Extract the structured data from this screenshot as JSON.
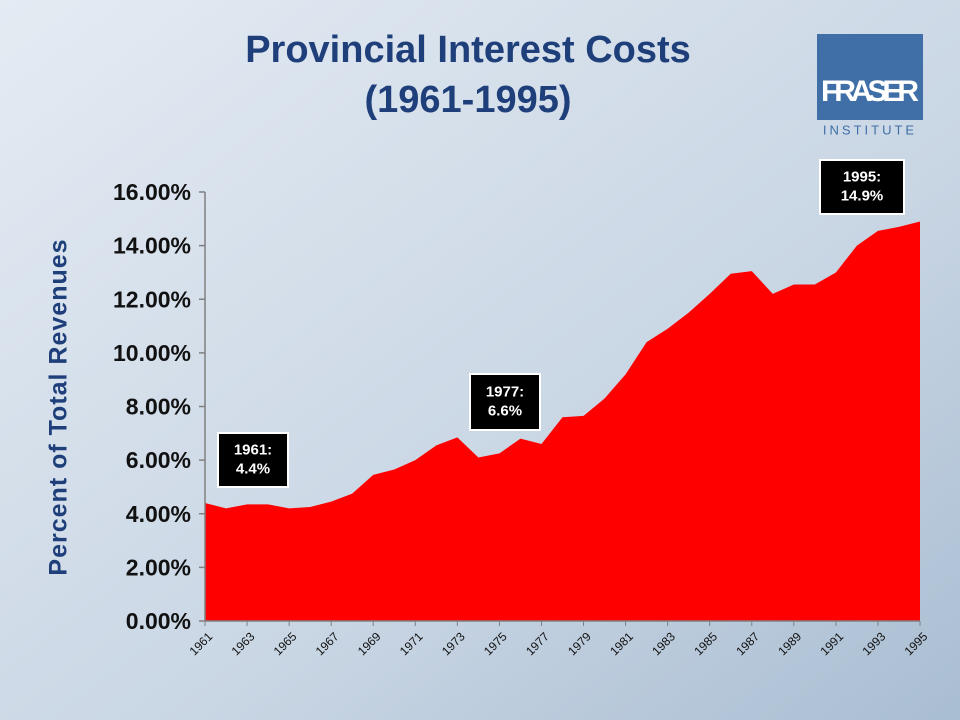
{
  "chart_data": {
    "type": "area",
    "title": "Provincial Interest Costs",
    "subtitle": "(1961-1995)",
    "y_label": "Percent of Total Revenues",
    "categories": [
      "1961",
      null,
      "1963",
      null,
      "1965",
      null,
      "1967",
      null,
      "1969",
      null,
      "1971",
      null,
      "1973",
      null,
      "1975",
      null,
      "1977",
      null,
      "1979",
      null,
      "1981",
      null,
      "1983",
      null,
      "1985",
      null,
      "1987",
      null,
      "1989",
      null,
      "1991",
      null,
      "1993",
      null,
      "1995"
    ],
    "values": [
      4.4,
      4.2,
      4.35,
      4.35,
      4.2,
      4.25,
      4.45,
      4.75,
      5.45,
      5.65,
      6.0,
      6.55,
      6.85,
      6.1,
      6.25,
      6.8,
      6.6,
      7.6,
      7.65,
      8.3,
      9.2,
      10.4,
      10.9,
      11.5,
      12.2,
      12.95,
      13.05,
      12.2,
      12.55,
      12.55,
      13.0,
      14.0,
      14.55,
      14.7,
      14.9
    ],
    "color": "#ff0000",
    "ylim": [
      0,
      16
    ],
    "yticks": [
      {
        "value": 0,
        "label": "0.00%"
      },
      {
        "value": 2,
        "label": "2.00%"
      },
      {
        "value": 4,
        "label": "4.00%"
      },
      {
        "value": 6,
        "label": "6.00%"
      },
      {
        "value": 8,
        "label": "8.00%"
      },
      {
        "value": 10,
        "label": "10.00%"
      },
      {
        "value": 12,
        "label": "12.00%"
      },
      {
        "value": 14,
        "label": "14.00%"
      },
      {
        "value": 16,
        "label": "16.00%"
      }
    ],
    "grid": false,
    "annotations": [
      {
        "lines": [
          "1961:",
          "4.4%"
        ]
      },
      {
        "lines": [
          "1977:",
          "6.6%"
        ]
      },
      {
        "lines": [
          "1995:",
          "14.9%"
        ]
      }
    ]
  },
  "logo": {
    "line1": "FRASER",
    "line2": "INSTITUTE"
  }
}
